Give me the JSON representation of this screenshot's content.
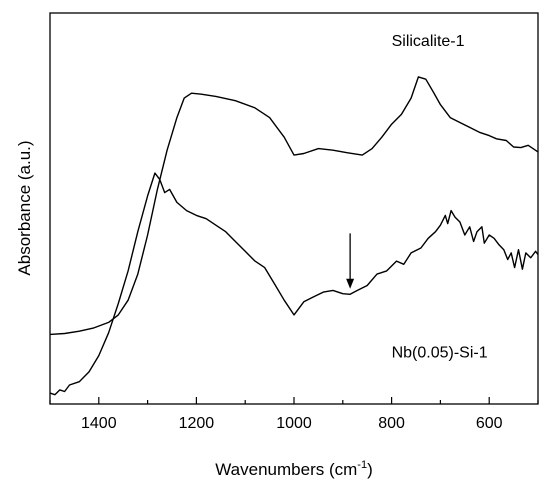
{
  "chart_data": {
    "type": "line",
    "xlabel": "Wavenumbers (cm",
    "xlabel_sup": "-1",
    "xlabel_end": ")",
    "ylabel": "Absorbance (a.u.)",
    "xlim": [
      1500,
      500
    ],
    "x_reversed": true,
    "ylim": [
      0,
      1
    ],
    "y_ticks_shown": false,
    "x_ticks": [
      1400,
      1200,
      1000,
      800,
      600
    ],
    "x_tick_labels": [
      "1400",
      "1200",
      "1000",
      "800",
      "600"
    ],
    "grid": false,
    "series": [
      {
        "name": "Silicalite-1",
        "color": "#000000",
        "points": [
          [
            1500,
            0.195
          ],
          [
            1470,
            0.198
          ],
          [
            1440,
            0.205
          ],
          [
            1410,
            0.215
          ],
          [
            1380,
            0.232
          ],
          [
            1360,
            0.255
          ],
          [
            1340,
            0.3
          ],
          [
            1320,
            0.38
          ],
          [
            1300,
            0.5
          ],
          [
            1280,
            0.64
          ],
          [
            1260,
            0.76
          ],
          [
            1240,
            0.86
          ],
          [
            1225,
            0.92
          ],
          [
            1210,
            0.935
          ],
          [
            1190,
            0.932
          ],
          [
            1160,
            0.925
          ],
          [
            1120,
            0.912
          ],
          [
            1080,
            0.89
          ],
          [
            1050,
            0.86
          ],
          [
            1020,
            0.8
          ],
          [
            1000,
            0.745
          ],
          [
            980,
            0.75
          ],
          [
            950,
            0.765
          ],
          [
            920,
            0.76
          ],
          [
            890,
            0.752
          ],
          [
            860,
            0.745
          ],
          [
            840,
            0.765
          ],
          [
            820,
            0.8
          ],
          [
            800,
            0.84
          ],
          [
            780,
            0.87
          ],
          [
            760,
            0.92
          ],
          [
            745,
            0.985
          ],
          [
            730,
            0.978
          ],
          [
            715,
            0.94
          ],
          [
            700,
            0.9
          ],
          [
            680,
            0.86
          ],
          [
            660,
            0.845
          ],
          [
            640,
            0.83
          ],
          [
            620,
            0.815
          ],
          [
            600,
            0.805
          ],
          [
            585,
            0.795
          ],
          [
            565,
            0.79
          ],
          [
            550,
            0.77
          ],
          [
            535,
            0.768
          ],
          [
            520,
            0.775
          ],
          [
            500,
            0.755
          ]
        ]
      },
      {
        "name": "Nb(0.05)-Si-1",
        "color": "#000000",
        "points": [
          [
            1500,
            0.015
          ],
          [
            1490,
            0.01
          ],
          [
            1480,
            0.025
          ],
          [
            1470,
            0.02
          ],
          [
            1460,
            0.04
          ],
          [
            1440,
            0.05
          ],
          [
            1420,
            0.08
          ],
          [
            1400,
            0.13
          ],
          [
            1380,
            0.2
          ],
          [
            1360,
            0.29
          ],
          [
            1340,
            0.39
          ],
          [
            1320,
            0.51
          ],
          [
            1300,
            0.62
          ],
          [
            1285,
            0.69
          ],
          [
            1275,
            0.67
          ],
          [
            1265,
            0.63
          ],
          [
            1255,
            0.64
          ],
          [
            1240,
            0.6
          ],
          [
            1220,
            0.575
          ],
          [
            1200,
            0.56
          ],
          [
            1180,
            0.55
          ],
          [
            1160,
            0.53
          ],
          [
            1140,
            0.51
          ],
          [
            1120,
            0.48
          ],
          [
            1100,
            0.45
          ],
          [
            1080,
            0.42
          ],
          [
            1060,
            0.4
          ],
          [
            1040,
            0.35
          ],
          [
            1020,
            0.3
          ],
          [
            1000,
            0.255
          ],
          [
            980,
            0.295
          ],
          [
            960,
            0.31
          ],
          [
            940,
            0.325
          ],
          [
            920,
            0.33
          ],
          [
            900,
            0.32
          ],
          [
            885,
            0.318
          ],
          [
            870,
            0.33
          ],
          [
            850,
            0.345
          ],
          [
            830,
            0.38
          ],
          [
            810,
            0.39
          ],
          [
            790,
            0.42
          ],
          [
            775,
            0.41
          ],
          [
            760,
            0.445
          ],
          [
            740,
            0.46
          ],
          [
            725,
            0.49
          ],
          [
            710,
            0.51
          ],
          [
            700,
            0.53
          ],
          [
            690,
            0.56
          ],
          [
            685,
            0.535
          ],
          [
            678,
            0.575
          ],
          [
            670,
            0.555
          ],
          [
            660,
            0.54
          ],
          [
            650,
            0.5
          ],
          [
            640,
            0.525
          ],
          [
            632,
            0.48
          ],
          [
            625,
            0.51
          ],
          [
            615,
            0.525
          ],
          [
            610,
            0.475
          ],
          [
            600,
            0.5
          ],
          [
            590,
            0.49
          ],
          [
            580,
            0.47
          ],
          [
            570,
            0.455
          ],
          [
            562,
            0.425
          ],
          [
            555,
            0.445
          ],
          [
            548,
            0.4
          ],
          [
            540,
            0.455
          ],
          [
            532,
            0.395
          ],
          [
            525,
            0.445
          ],
          [
            515,
            0.43
          ],
          [
            505,
            0.45
          ],
          [
            500,
            0.44
          ]
        ]
      }
    ],
    "series_labels": [
      {
        "text": "Silicalite-1",
        "x": 800,
        "y": 1.08
      },
      {
        "text": "Nb(0.05)-Si-1",
        "x": 800,
        "y": 0.125
      }
    ],
    "annotations": [
      {
        "type": "arrow",
        "x": 885,
        "y_from": 0.505,
        "y_to": 0.335
      }
    ]
  }
}
